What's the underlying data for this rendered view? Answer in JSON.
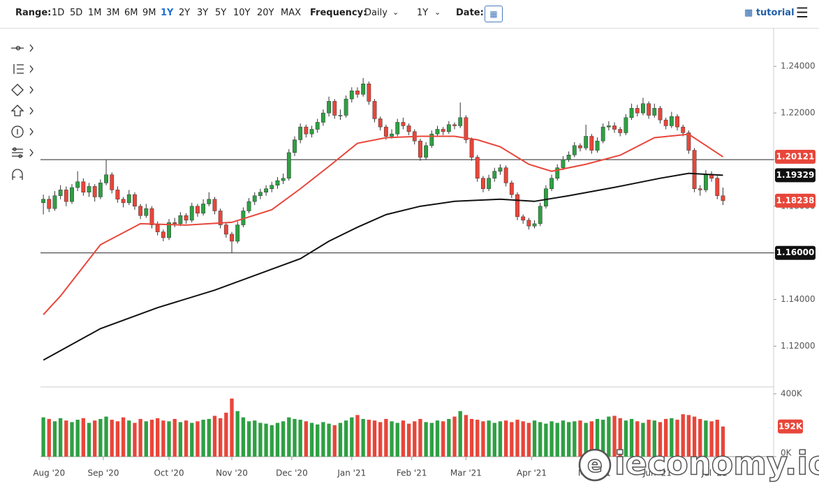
{
  "toolbar": {
    "range_label": "Range:",
    "ranges": [
      "1D",
      "5D",
      "1M",
      "3M",
      "6M",
      "9M",
      "1Y",
      "2Y",
      "3Y",
      "5Y",
      "10Y",
      "20Y",
      "MAX"
    ],
    "active_range": 6,
    "frequency_label": "Frequency:",
    "frequency": "Daily",
    "period": "1Y",
    "date_label": "Date:",
    "tutorial": "tutorial"
  },
  "watermark": "ieconomy.io",
  "chart_data": {
    "type": "candlestick",
    "up_color": "#2ea043",
    "down_color": "#e8463a",
    "xlim": [
      -0.5,
      127.5
    ],
    "xticks": [
      {
        "value": 1,
        "label": "Aug '20"
      },
      {
        "value": 10.5,
        "label": "Sep '20"
      },
      {
        "value": 22,
        "label": "Oct '20"
      },
      {
        "value": 33,
        "label": "Nov '20"
      },
      {
        "value": 43.5,
        "label": "Dec '20"
      },
      {
        "value": 54,
        "label": "Jan '21"
      },
      {
        "value": 64.5,
        "label": "Feb '21"
      },
      {
        "value": 74,
        "label": "Mar '21"
      },
      {
        "value": 85.5,
        "label": "Apr '21"
      },
      {
        "value": 96.5,
        "label": "May '21"
      },
      {
        "value": 107.5,
        "label": "Jun '21"
      },
      {
        "value": 117.5,
        "label": "Jul '21"
      }
    ],
    "ylim": [
      1.1025,
      1.2565
    ],
    "yticks": [
      {
        "value": 1.12,
        "label": "1.12000"
      },
      {
        "value": 1.14,
        "label": "1.14000"
      },
      {
        "value": 1.16,
        "label": "1.16000"
      },
      {
        "value": 1.18,
        "label": "1.18000"
      },
      {
        "value": 1.2,
        "label": "1.20000"
      },
      {
        "value": 1.22,
        "label": "1.22000"
      },
      {
        "value": 1.24,
        "label": "1.24000"
      }
    ],
    "hlines": [
      1.2,
      {
        "value": 1.16,
        "label": "1.16000"
      }
    ],
    "last_label": "1.18238",
    "ohlc": [
      [
        1.1815,
        1.185,
        1.1765,
        1.183
      ],
      [
        1.183,
        1.1845,
        1.1775,
        1.179
      ],
      [
        1.179,
        1.1865,
        1.178,
        1.1845
      ],
      [
        1.1845,
        1.189,
        1.183,
        1.187
      ],
      [
        1.187,
        1.1885,
        1.18,
        1.182
      ],
      [
        1.182,
        1.1895,
        1.181,
        1.188
      ],
      [
        1.188,
        1.195,
        1.1865,
        1.1905
      ],
      [
        1.1905,
        1.192,
        1.1845,
        1.186
      ],
      [
        1.186,
        1.19,
        1.184,
        1.1885
      ],
      [
        1.1885,
        1.1895,
        1.182,
        1.184
      ],
      [
        1.184,
        1.1915,
        1.183,
        1.19
      ],
      [
        1.19,
        1.2,
        1.189,
        1.1935
      ],
      [
        1.1935,
        1.1945,
        1.1855,
        1.187
      ],
      [
        1.187,
        1.1885,
        1.1815,
        1.183
      ],
      [
        1.183,
        1.184,
        1.1795,
        1.1815
      ],
      [
        1.1815,
        1.187,
        1.1805,
        1.185
      ],
      [
        1.185,
        1.186,
        1.1785,
        1.18
      ],
      [
        1.18,
        1.181,
        1.1745,
        1.176
      ],
      [
        1.176,
        1.181,
        1.175,
        1.179
      ],
      [
        1.179,
        1.18,
        1.1705,
        1.172
      ],
      [
        1.172,
        1.1735,
        1.1675,
        1.169
      ],
      [
        1.169,
        1.17,
        1.165,
        1.1665
      ],
      [
        1.1665,
        1.1745,
        1.1655,
        1.173
      ],
      [
        1.173,
        1.175,
        1.171,
        1.1725
      ],
      [
        1.1725,
        1.1775,
        1.1715,
        1.176
      ],
      [
        1.176,
        1.177,
        1.1725,
        1.174
      ],
      [
        1.174,
        1.1815,
        1.173,
        1.18
      ],
      [
        1.18,
        1.181,
        1.1755,
        1.177
      ],
      [
        1.177,
        1.183,
        1.176,
        1.181
      ],
      [
        1.181,
        1.186,
        1.18,
        1.183
      ],
      [
        1.183,
        1.184,
        1.1765,
        1.178
      ],
      [
        1.178,
        1.179,
        1.1705,
        1.172
      ],
      [
        1.172,
        1.173,
        1.1665,
        1.168
      ],
      [
        1.168,
        1.169,
        1.16,
        1.165
      ],
      [
        1.165,
        1.1735,
        1.164,
        1.172
      ],
      [
        1.172,
        1.1795,
        1.171,
        1.178
      ],
      [
        1.178,
        1.1835,
        1.177,
        1.182
      ],
      [
        1.182,
        1.186,
        1.1805,
        1.1845
      ],
      [
        1.1845,
        1.1875,
        1.183,
        1.186
      ],
      [
        1.186,
        1.189,
        1.1845,
        1.1875
      ],
      [
        1.1875,
        1.1905,
        1.186,
        1.189
      ],
      [
        1.189,
        1.1925,
        1.1875,
        1.191
      ],
      [
        1.191,
        1.194,
        1.1895,
        1.192
      ],
      [
        1.192,
        1.2045,
        1.191,
        1.203
      ],
      [
        1.203,
        1.21,
        1.2015,
        1.2085
      ],
      [
        1.2085,
        1.2155,
        1.207,
        1.214
      ],
      [
        1.214,
        1.215,
        1.2095,
        1.211
      ],
      [
        1.211,
        1.2145,
        1.2095,
        1.213
      ],
      [
        1.213,
        1.2175,
        1.2115,
        1.216
      ],
      [
        1.216,
        1.2215,
        1.2145,
        1.22
      ],
      [
        1.22,
        1.227,
        1.2185,
        1.225
      ],
      [
        1.225,
        1.226,
        1.2175,
        1.219
      ],
      [
        1.219,
        1.2215,
        1.217,
        1.219
      ],
      [
        1.219,
        1.2275,
        1.218,
        1.226
      ],
      [
        1.226,
        1.231,
        1.2245,
        1.2295
      ],
      [
        1.2295,
        1.231,
        1.2265,
        1.228
      ],
      [
        1.228,
        1.235,
        1.227,
        1.2325
      ],
      [
        1.2325,
        1.2335,
        1.2235,
        1.225
      ],
      [
        1.225,
        1.226,
        1.216,
        1.2175
      ],
      [
        1.2175,
        1.2185,
        1.2125,
        1.214
      ],
      [
        1.214,
        1.215,
        1.2085,
        1.21
      ],
      [
        1.21,
        1.213,
        1.209,
        1.211
      ],
      [
        1.211,
        1.2175,
        1.21,
        1.216
      ],
      [
        1.216,
        1.218,
        1.213,
        1.2145
      ],
      [
        1.2145,
        1.2155,
        1.2105,
        1.212
      ],
      [
        1.212,
        1.213,
        1.2065,
        1.208
      ],
      [
        1.208,
        1.209,
        1.1995,
        1.201
      ],
      [
        1.201,
        1.2075,
        1.2,
        1.206
      ],
      [
        1.206,
        1.2125,
        1.205,
        1.211
      ],
      [
        1.211,
        1.2145,
        1.21,
        1.213
      ],
      [
        1.213,
        1.214,
        1.2105,
        1.212
      ],
      [
        1.212,
        1.2165,
        1.211,
        1.215
      ],
      [
        1.215,
        1.216,
        1.213,
        1.2145
      ],
      [
        1.2145,
        1.2245,
        1.2135,
        1.218
      ],
      [
        1.218,
        1.219,
        1.207,
        1.2085
      ],
      [
        1.2085,
        1.2095,
        1.1995,
        1.201
      ],
      [
        1.201,
        1.202,
        1.1905,
        1.192
      ],
      [
        1.192,
        1.193,
        1.186,
        1.1875
      ],
      [
        1.1875,
        1.1935,
        1.1865,
        1.192
      ],
      [
        1.192,
        1.1965,
        1.1905,
        1.195
      ],
      [
        1.195,
        1.198,
        1.1935,
        1.1965
      ],
      [
        1.1965,
        1.1975,
        1.1885,
        1.19
      ],
      [
        1.19,
        1.191,
        1.1835,
        1.185
      ],
      [
        1.185,
        1.186,
        1.174,
        1.1755
      ],
      [
        1.1755,
        1.1765,
        1.1725,
        1.174
      ],
      [
        1.174,
        1.175,
        1.17,
        1.1715
      ],
      [
        1.1715,
        1.174,
        1.1705,
        1.1725
      ],
      [
        1.1725,
        1.1815,
        1.1715,
        1.18
      ],
      [
        1.18,
        1.189,
        1.179,
        1.1875
      ],
      [
        1.1875,
        1.1935,
        1.1865,
        1.192
      ],
      [
        1.192,
        1.198,
        1.191,
        1.1965
      ],
      [
        1.1965,
        1.2015,
        1.1955,
        1.2
      ],
      [
        1.2,
        1.2035,
        1.199,
        1.202
      ],
      [
        1.202,
        1.2075,
        1.201,
        1.206
      ],
      [
        1.206,
        1.207,
        1.2035,
        1.205
      ],
      [
        1.205,
        1.215,
        1.204,
        1.21
      ],
      [
        1.21,
        1.211,
        1.2025,
        1.204
      ],
      [
        1.204,
        1.2095,
        1.203,
        1.208
      ],
      [
        1.208,
        1.2155,
        1.207,
        1.214
      ],
      [
        1.214,
        1.2165,
        1.2125,
        1.2145
      ],
      [
        1.2145,
        1.216,
        1.2115,
        1.213
      ],
      [
        1.213,
        1.214,
        1.21,
        1.2115
      ],
      [
        1.2115,
        1.2195,
        1.2105,
        1.218
      ],
      [
        1.218,
        1.224,
        1.217,
        1.222
      ],
      [
        1.222,
        1.2235,
        1.2185,
        1.22
      ],
      [
        1.22,
        1.2265,
        1.219,
        1.224
      ],
      [
        1.224,
        1.225,
        1.2175,
        1.219
      ],
      [
        1.219,
        1.224,
        1.218,
        1.222
      ],
      [
        1.222,
        1.223,
        1.2155,
        1.217
      ],
      [
        1.217,
        1.218,
        1.213,
        1.2145
      ],
      [
        1.2145,
        1.2205,
        1.2135,
        1.2185
      ],
      [
        1.2185,
        1.2195,
        1.2125,
        1.214
      ],
      [
        1.214,
        1.215,
        1.21,
        1.2115
      ],
      [
        1.2115,
        1.2125,
        1.2025,
        1.204
      ],
      [
        1.204,
        1.205,
        1.186,
        1.1875
      ],
      [
        1.1875,
        1.189,
        1.1845,
        1.187
      ],
      [
        1.187,
        1.1955,
        1.186,
        1.1935
      ],
      [
        1.1935,
        1.195,
        1.1905,
        1.192
      ],
      [
        1.192,
        1.193,
        1.183,
        1.1845
      ],
      [
        1.1845,
        1.188,
        1.1805,
        1.18238
      ]
    ],
    "lines": [
      {
        "color": "#e8463a",
        "last_label": "1.20121",
        "x": [
          0,
          3,
          10,
          17,
          25,
          33,
          40,
          45,
          50,
          55,
          60,
          66,
          72,
          76,
          80,
          85,
          89,
          95,
          101,
          107,
          113,
          119
        ],
        "values": [
          1.1335,
          1.1415,
          1.1635,
          1.1725,
          1.1719,
          1.1731,
          1.1785,
          1.1875,
          1.1971,
          1.207,
          1.2094,
          1.21,
          1.21,
          1.2085,
          1.2055,
          1.198,
          1.195,
          1.198,
          1.2019,
          1.2094,
          1.2109,
          1.20121
        ]
      },
      {
        "color": "#111111",
        "last_label": "1.19329",
        "x": [
          0,
          10,
          20,
          30,
          40,
          45,
          50,
          55,
          60,
          66,
          72,
          80,
          86,
          92,
          100,
          108,
          113,
          119
        ],
        "values": [
          1.114,
          1.1275,
          1.1365,
          1.144,
          1.153,
          1.1575,
          1.165,
          1.171,
          1.1764,
          1.18,
          1.1821,
          1.183,
          1.1821,
          1.1845,
          1.1881,
          1.192,
          1.1941,
          1.19329
        ]
      }
    ],
    "volume": {
      "ylim": [
        0,
        444000
      ],
      "yticks": [
        {
          "value": 0,
          "label": "0K"
        },
        {
          "value": 400000,
          "label": "400K"
        }
      ],
      "last_label": "192K",
      "values": [
        250000,
        240000,
        225000,
        245000,
        230000,
        220000,
        235000,
        245000,
        215000,
        230000,
        240000,
        255000,
        235000,
        225000,
        250000,
        230000,
        215000,
        240000,
        225000,
        235000,
        245000,
        230000,
        225000,
        240000,
        220000,
        230000,
        215000,
        225000,
        235000,
        240000,
        260000,
        245000,
        280000,
        370000,
        290000,
        250000,
        225000,
        230000,
        215000,
        210000,
        200000,
        215000,
        225000,
        250000,
        240000,
        235000,
        225000,
        215000,
        205000,
        220000,
        210000,
        200000,
        215000,
        230000,
        250000,
        265000,
        240000,
        235000,
        230000,
        220000,
        240000,
        225000,
        215000,
        230000,
        210000,
        225000,
        240000,
        220000,
        215000,
        230000,
        225000,
        240000,
        255000,
        290000,
        265000,
        240000,
        235000,
        225000,
        230000,
        215000,
        225000,
        230000,
        220000,
        235000,
        225000,
        215000,
        230000,
        220000,
        210000,
        225000,
        215000,
        230000,
        220000,
        225000,
        230000,
        215000,
        225000,
        240000,
        235000,
        255000,
        260000,
        245000,
        230000,
        240000,
        225000,
        215000,
        235000,
        230000,
        220000,
        240000,
        245000,
        235000,
        270000,
        265000,
        255000,
        240000,
        230000,
        225000,
        235000,
        192000
      ]
    }
  }
}
